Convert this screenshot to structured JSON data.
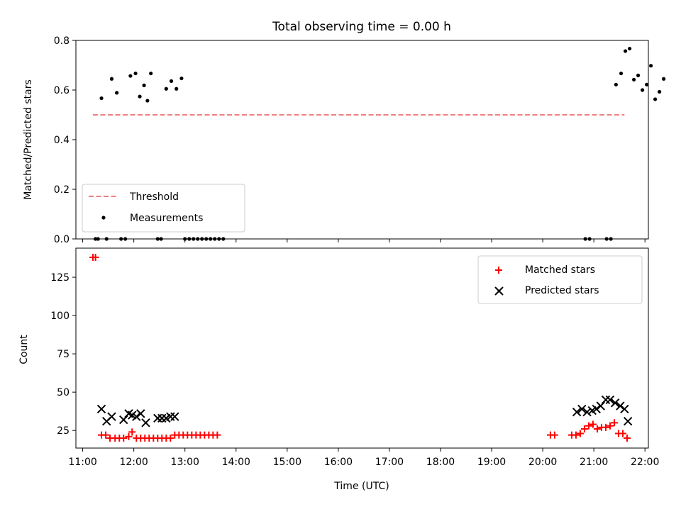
{
  "chart_data": [
    {
      "type": "scatter",
      "title": "Total observing time = 0.00 h",
      "ylabel": "Matched/Predicted stars",
      "xlim": [
        "10:52",
        "22:04"
      ],
      "ylim": [
        0,
        0.8
      ],
      "yticks": [
        "0.0",
        "0.2",
        "0.4",
        "0.6",
        "0.8"
      ],
      "legend": {
        "loc": "lower-left",
        "entries": [
          "Threshold",
          "Measurements"
        ]
      },
      "threshold": {
        "name": "Threshold",
        "y": 0.5,
        "x_range": [
          "11:12",
          "21:36"
        ],
        "color": "#f08080",
        "style": "dashed"
      },
      "series": [
        {
          "name": "Measurements",
          "color": "#000000",
          "marker": "dot",
          "points": [
            [
              "11:15",
              0
            ],
            [
              "11:18",
              0
            ],
            [
              "11:22",
              0.567
            ],
            [
              "11:28",
              0
            ],
            [
              "11:34",
              0.645
            ],
            [
              "11:40",
              0.589
            ],
            [
              "11:45",
              0
            ],
            [
              "11:50",
              0
            ],
            [
              "11:56",
              0.657
            ],
            [
              "12:02",
              0.667
            ],
            [
              "12:07",
              0.574
            ],
            [
              "12:12",
              0.619
            ],
            [
              "12:16",
              0.557
            ],
            [
              "12:20",
              0.667
            ],
            [
              "12:28",
              0
            ],
            [
              "12:32",
              0
            ],
            [
              "12:38",
              0.605
            ],
            [
              "12:44",
              0.636
            ],
            [
              "12:50",
              0.605
            ],
            [
              "12:56",
              0.647
            ],
            [
              "13:00",
              0
            ],
            [
              "13:05",
              0
            ],
            [
              "13:10",
              0
            ],
            [
              "13:15",
              0
            ],
            [
              "13:20",
              0
            ],
            [
              "13:25",
              0
            ],
            [
              "13:30",
              0
            ],
            [
              "13:35",
              0
            ],
            [
              "13:40",
              0
            ],
            [
              "13:45",
              0
            ],
            [
              "20:50",
              0
            ],
            [
              "20:55",
              0
            ],
            [
              "21:15",
              0
            ],
            [
              "21:20",
              0
            ],
            [
              "21:26",
              0.622
            ],
            [
              "21:32",
              0.667
            ],
            [
              "21:37",
              0.757
            ],
            [
              "21:42",
              0.767
            ],
            [
              "21:47",
              0.642
            ],
            [
              "21:52",
              0.659
            ],
            [
              "21:57",
              0.6
            ],
            [
              "22:02",
              0.622
            ],
            [
              "22:07",
              0.698
            ],
            [
              "22:12",
              0.563
            ],
            [
              "22:17",
              0.593
            ],
            [
              "22:22",
              0.645
            ]
          ]
        }
      ]
    },
    {
      "type": "scatter",
      "xlabel": "Time (UTC)",
      "ylabel": "Count",
      "xlim": [
        "10:52",
        "22:04"
      ],
      "ylim": [
        13.5,
        144
      ],
      "xticks": [
        "11:00",
        "12:00",
        "13:00",
        "14:00",
        "15:00",
        "16:00",
        "17:00",
        "18:00",
        "19:00",
        "20:00",
        "21:00",
        "22:00"
      ],
      "yticks": [
        "25",
        "50",
        "75",
        "100",
        "125"
      ],
      "legend": {
        "loc": "upper-right",
        "entries": [
          "Matched stars",
          "Predicted stars"
        ]
      },
      "series": [
        {
          "name": "Matched stars",
          "color": "#ff0000",
          "marker": "plus",
          "points": [
            [
              "11:12",
              138
            ],
            [
              "11:15",
              138
            ],
            [
              "11:22",
              22
            ],
            [
              "11:27",
              22
            ],
            [
              "11:32",
              20
            ],
            [
              "11:38",
              20
            ],
            [
              "11:43",
              20
            ],
            [
              "11:48",
              20
            ],
            [
              "11:54",
              21
            ],
            [
              "11:58",
              24
            ],
            [
              "12:03",
              20
            ],
            [
              "12:08",
              20
            ],
            [
              "12:13",
              20
            ],
            [
              "12:18",
              20
            ],
            [
              "12:23",
              20
            ],
            [
              "12:28",
              20
            ],
            [
              "12:33",
              20
            ],
            [
              "12:38",
              20
            ],
            [
              "12:43",
              20
            ],
            [
              "12:48",
              22
            ],
            [
              "12:53",
              22
            ],
            [
              "12:58",
              22
            ],
            [
              "13:03",
              22
            ],
            [
              "13:08",
              22
            ],
            [
              "13:13",
              22
            ],
            [
              "13:18",
              22
            ],
            [
              "13:23",
              22
            ],
            [
              "13:28",
              22
            ],
            [
              "13:33",
              22
            ],
            [
              "13:38",
              22
            ],
            [
              "20:09",
              22
            ],
            [
              "20:14",
              22
            ],
            [
              "20:34",
              22
            ],
            [
              "20:39",
              22
            ],
            [
              "20:44",
              23
            ],
            [
              "20:49",
              26
            ],
            [
              "20:54",
              28
            ],
            [
              "20:59",
              29
            ],
            [
              "21:04",
              26
            ],
            [
              "21:09",
              27
            ],
            [
              "21:14",
              27
            ],
            [
              "21:19",
              28
            ],
            [
              "21:24",
              30
            ],
            [
              "21:29",
              23
            ],
            [
              "21:34",
              23
            ],
            [
              "21:39",
              20
            ]
          ]
        },
        {
          "name": "Predicted stars",
          "color": "#000000",
          "marker": "x",
          "points": [
            [
              "11:22",
              39
            ],
            [
              "11:28",
              31
            ],
            [
              "11:34",
              34
            ],
            [
              "11:48",
              32
            ],
            [
              "11:54",
              36
            ],
            [
              "11:58",
              35
            ],
            [
              "12:03",
              34
            ],
            [
              "12:08",
              36
            ],
            [
              "12:14",
              30
            ],
            [
              "12:28",
              33
            ],
            [
              "12:33",
              33
            ],
            [
              "12:38",
              33
            ],
            [
              "12:43",
              34
            ],
            [
              "12:48",
              34
            ],
            [
              "20:40",
              37
            ],
            [
              "20:46",
              39
            ],
            [
              "20:52",
              37
            ],
            [
              "20:58",
              38
            ],
            [
              "21:03",
              39
            ],
            [
              "21:08",
              41
            ],
            [
              "21:14",
              45
            ],
            [
              "21:19",
              45
            ],
            [
              "21:25",
              43
            ],
            [
              "21:31",
              41
            ],
            [
              "21:36",
              39
            ],
            [
              "21:40",
              31
            ]
          ]
        }
      ]
    }
  ]
}
